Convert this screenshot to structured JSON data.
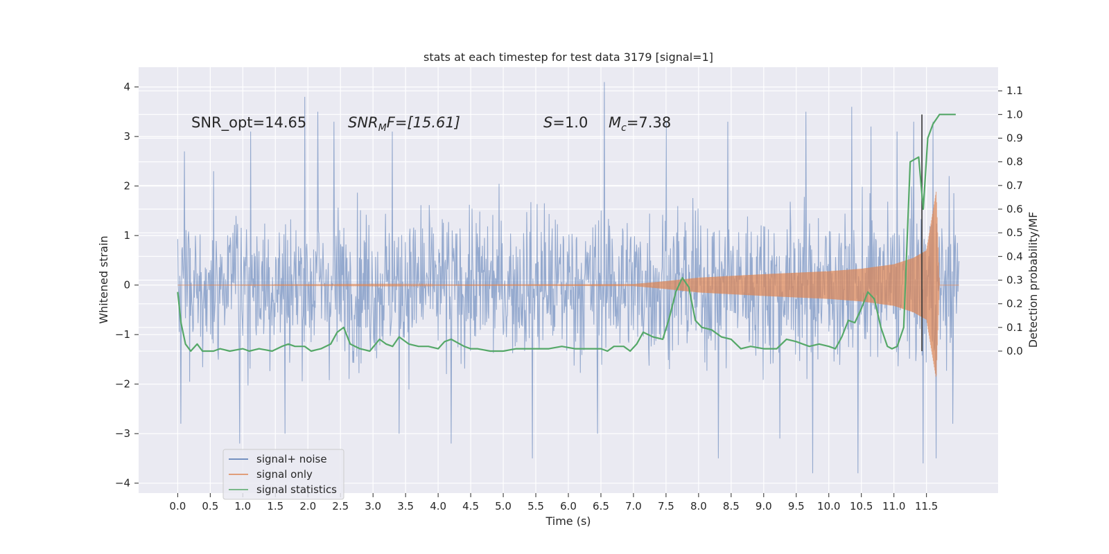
{
  "chart_data": {
    "type": "line",
    "title": "stats at each timestep for test data 3179 [signal=1]",
    "xlabel": "Time (s)",
    "ylabel": "Whitened strain",
    "ylabel_right": "Detection probability/MF",
    "xlim": [
      -0.6,
      12.6
    ],
    "ylim": [
      -4.2,
      4.4
    ],
    "ylim_right": [
      -0.6,
      1.2
    ],
    "x_ticks": [
      "0.0",
      "0.5",
      "1.0",
      "1.5",
      "2.0",
      "2.5",
      "3.0",
      "3.5",
      "4.0",
      "4.5",
      "5.0",
      "5.5",
      "6.0",
      "6.5",
      "7.0",
      "7.5",
      "8.0",
      "8.5",
      "9.0",
      "9.5",
      "10.0",
      "10.5",
      "11.0",
      "11.5"
    ],
    "y_ticks": [
      "4",
      "3",
      "2",
      "1",
      "0",
      "−1",
      "−2",
      "−3",
      "−4"
    ],
    "y_ticks_right": [
      "1.1",
      "1.0",
      "0.9",
      "0.8",
      "0.7",
      "0.6",
      "0.5",
      "0.4",
      "0.3",
      "0.2",
      "0.1",
      "0.0"
    ],
    "grid": true,
    "legend_position": "bottom-left",
    "annotations": {
      "snr_opt": "SNR_opt=14.65",
      "snr_mf_main": "SNR",
      "snr_mf_sub": "M",
      "snr_mf_rest": "F=[15.61]",
      "s_sym": "S",
      "s_rest": "=1.0",
      "mc_sym": "M",
      "mc_sub": "c",
      "mc_rest": "=7.38"
    },
    "vertical_line_x": 11.43,
    "series": [
      {
        "name": "signal+ noise",
        "axis": "left",
        "color": "#4c72b0",
        "x_range": [
          0.0,
          12.0
        ],
        "envelope_peaks_upper": [
          [
            0.1,
            2.7
          ],
          [
            0.55,
            2.3
          ],
          [
            0.95,
            2.8
          ],
          [
            1.12,
            3.1
          ],
          [
            1.95,
            3.8
          ],
          [
            2.15,
            3.5
          ],
          [
            2.4,
            3.3
          ],
          [
            3.3,
            3.1
          ],
          [
            4.2,
            3.4
          ],
          [
            5.45,
            3.4
          ],
          [
            6.55,
            4.1
          ],
          [
            7.5,
            3.3
          ],
          [
            8.45,
            3.3
          ],
          [
            9.65,
            3.5
          ],
          [
            10.35,
            3.6
          ],
          [
            10.65,
            3.2
          ],
          [
            11.05,
            3.1
          ],
          [
            11.3,
            3.3
          ],
          [
            11.6,
            3.3
          ],
          [
            11.85,
            2.2
          ]
        ],
        "envelope_peaks_lower": [
          [
            0.05,
            -2.8
          ],
          [
            0.95,
            -3.2
          ],
          [
            1.65,
            -3.0
          ],
          [
            3.4,
            -3.0
          ],
          [
            4.2,
            -3.2
          ],
          [
            5.45,
            -3.5
          ],
          [
            6.45,
            -3.0
          ],
          [
            8.3,
            -3.5
          ],
          [
            9.25,
            -3.1
          ],
          [
            9.75,
            -3.8
          ],
          [
            10.45,
            -3.8
          ],
          [
            11.45,
            -3.6
          ],
          [
            11.65,
            -3.5
          ],
          [
            11.9,
            -2.8
          ]
        ]
      },
      {
        "name": "signal only",
        "axis": "left",
        "color": "#dd8452",
        "x_range": [
          0.0,
          12.0
        ],
        "amplitude": [
          [
            0.0,
            0.0
          ],
          [
            7.0,
            0.02
          ],
          [
            7.5,
            0.08
          ],
          [
            8.0,
            0.15
          ],
          [
            9.0,
            0.22
          ],
          [
            10.0,
            0.28
          ],
          [
            10.5,
            0.33
          ],
          [
            11.0,
            0.42
          ],
          [
            11.3,
            0.55
          ],
          [
            11.5,
            0.7
          ],
          [
            11.65,
            1.9
          ],
          [
            11.7,
            0.0
          ]
        ]
      },
      {
        "name": "signal statistics",
        "axis": "right",
        "color": "#55a868",
        "x": [
          0.0,
          0.05,
          0.12,
          0.2,
          0.3,
          0.38,
          0.45,
          0.55,
          0.65,
          0.8,
          1.0,
          1.1,
          1.25,
          1.45,
          1.6,
          1.7,
          1.8,
          1.95,
          2.05,
          2.2,
          2.35,
          2.45,
          2.55,
          2.65,
          2.8,
          2.95,
          3.1,
          3.2,
          3.3,
          3.4,
          3.55,
          3.7,
          3.85,
          4.0,
          4.1,
          4.2,
          4.4,
          4.5,
          4.6,
          4.8,
          5.0,
          5.2,
          5.35,
          5.5,
          5.7,
          5.9,
          6.1,
          6.3,
          6.5,
          6.6,
          6.7,
          6.85,
          6.95,
          7.05,
          7.15,
          7.3,
          7.45,
          7.55,
          7.65,
          7.75,
          7.85,
          7.95,
          8.05,
          8.2,
          8.35,
          8.5,
          8.65,
          8.8,
          9.0,
          9.2,
          9.35,
          9.5,
          9.6,
          9.7,
          9.85,
          10.0,
          10.1,
          10.2,
          10.3,
          10.4,
          10.5,
          10.6,
          10.7,
          10.8,
          10.9,
          10.97,
          11.05,
          11.15,
          11.25,
          11.38,
          11.45,
          11.52,
          11.6,
          11.7,
          11.85,
          11.95
        ],
        "y": [
          0.25,
          0.12,
          0.03,
          0.0,
          0.03,
          0.0,
          0.0,
          0.0,
          0.01,
          0.0,
          0.01,
          0.0,
          0.01,
          0.0,
          0.02,
          0.03,
          0.02,
          0.02,
          0.0,
          0.01,
          0.03,
          0.08,
          0.1,
          0.03,
          0.01,
          0.0,
          0.05,
          0.03,
          0.02,
          0.06,
          0.03,
          0.02,
          0.02,
          0.01,
          0.04,
          0.05,
          0.02,
          0.01,
          0.01,
          0.0,
          0.0,
          0.01,
          0.01,
          0.01,
          0.01,
          0.02,
          0.01,
          0.01,
          0.01,
          0.0,
          0.02,
          0.02,
          0.0,
          0.03,
          0.08,
          0.06,
          0.05,
          0.14,
          0.25,
          0.31,
          0.27,
          0.13,
          0.1,
          0.09,
          0.06,
          0.05,
          0.01,
          0.02,
          0.01,
          0.01,
          0.05,
          0.04,
          0.03,
          0.02,
          0.03,
          0.02,
          0.01,
          0.06,
          0.13,
          0.12,
          0.18,
          0.25,
          0.22,
          0.1,
          0.02,
          0.01,
          0.02,
          0.1,
          0.8,
          0.82,
          0.6,
          0.9,
          0.96,
          1.0,
          1.0,
          1.0
        ]
      }
    ]
  }
}
